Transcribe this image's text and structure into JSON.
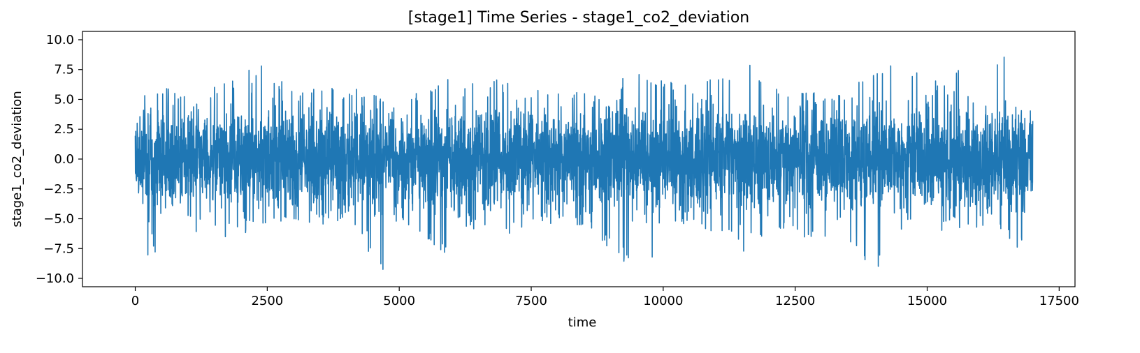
{
  "chart_data": {
    "type": "line",
    "title": "[stage1] Time Series - stage1_co2_deviation",
    "xlabel": "time",
    "ylabel": "stage1_co2_deviation",
    "xlim": [
      -1000,
      17800
    ],
    "ylim": [
      -10.7,
      10.7
    ],
    "x_ticks": [
      0,
      2500,
      5000,
      7500,
      10000,
      12500,
      15000,
      17500
    ],
    "y_ticks": [
      -10.0,
      -7.5,
      -5.0,
      -2.5,
      0.0,
      2.5,
      5.0,
      7.5,
      10.0
    ],
    "x_tick_labels": [
      "0",
      "2500",
      "5000",
      "7500",
      "10000",
      "12500",
      "15000",
      "17500"
    ],
    "y_tick_labels": [
      "−10.0",
      "−7.5",
      "−5.0",
      "−2.5",
      "0.0",
      "2.5",
      "5.0",
      "7.5",
      "10.0"
    ],
    "grid": false,
    "legend": "none",
    "series": [
      {
        "color": "#1f77b4",
        "x_start": 0,
        "x_end": 17000,
        "sample_envelope": {
          "x": [
            0,
            200,
            1000,
            1300,
            1900,
            2200,
            2600,
            3000,
            3500,
            4000,
            4600,
            4850,
            5000,
            5500,
            6000,
            6100,
            7000,
            7500,
            8000,
            8500,
            9200,
            9700,
            10000,
            10600,
            11400,
            11600,
            12000,
            12500,
            13200,
            14000,
            14500,
            15000,
            15500,
            15750,
            16000,
            16500,
            16700,
            17000
          ],
          "min": [
            -1.0,
            -8.2,
            -7.9,
            -5.0,
            -7.8,
            -5.2,
            -5.5,
            -5.0,
            -5.5,
            -5.0,
            -9.5,
            -9.8,
            -5.0,
            -6.5,
            -8.6,
            -5.5,
            -6.6,
            -5.2,
            -5.5,
            -5.5,
            -8.6,
            -9.3,
            -6.2,
            -5.5,
            -6.8,
            -9.3,
            -5.5,
            -6.5,
            -6.6,
            -9.6,
            -6.3,
            -7.4,
            -5.5,
            -6.5,
            -5.5,
            -6.0,
            -8.8,
            -2.5
          ],
          "max": [
            3.9,
            6.3,
            5.5,
            6.9,
            6.5,
            8.2,
            7.5,
            5.5,
            6.0,
            6.0,
            5.5,
            4.0,
            5.0,
            6.3,
            7.2,
            6.0,
            7.0,
            5.6,
            6.2,
            5.8,
            6.8,
            7.4,
            6.6,
            6.5,
            7.9,
            9.0,
            6.0,
            5.5,
            5.6,
            7.6,
            8.9,
            6.8,
            6.5,
            9.7,
            6.5,
            9.0,
            6.0,
            3.8
          ]
        }
      }
    ]
  }
}
